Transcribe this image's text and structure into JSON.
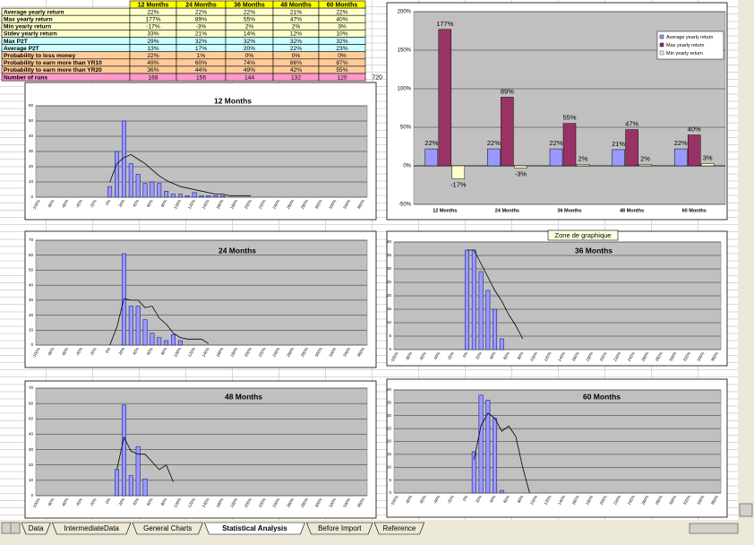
{
  "table": {
    "columns": [
      "12 Months",
      "24 Months",
      "36 Months",
      "48 Months",
      "60 Months"
    ],
    "header_color": "#ffff00",
    "rows": [
      {
        "label": "Average yearly return",
        "color": "#ffffcc",
        "cells": [
          "22%",
          "22%",
          "22%",
          "21%",
          "22%"
        ]
      },
      {
        "label": "Max yearly return",
        "color": "#ffffcc",
        "cells": [
          "177%",
          "89%",
          "55%",
          "47%",
          "40%"
        ]
      },
      {
        "label": "Min yearly return",
        "color": "#ffffcc",
        "cells": [
          "-17%",
          "-3%",
          "2%",
          "2%",
          "3%"
        ]
      },
      {
        "label": "Stdev yearly return",
        "color": "#ffffcc",
        "cells": [
          "33%",
          "21%",
          "14%",
          "12%",
          "10%"
        ]
      },
      {
        "label": "Max P2T",
        "color": "#ccffff",
        "cells": [
          "29%",
          "32%",
          "32%",
          "32%",
          "32%"
        ]
      },
      {
        "label": "Average P2T",
        "color": "#ccffff",
        "cells": [
          "13%",
          "17%",
          "20%",
          "22%",
          "23%"
        ]
      },
      {
        "label": "Probability to loss money",
        "color": "#ffcc99",
        "cells": [
          "22%",
          "1%",
          "0%",
          "0%",
          "0%"
        ]
      },
      {
        "label": "Probability to earn more than YR10",
        "color": "#ffcc99",
        "cells": [
          "49%",
          "60%",
          "74%",
          "86%",
          "87%"
        ]
      },
      {
        "label": "Probability to earn more than YR20",
        "color": "#ffcc99",
        "cells": [
          "36%",
          "44%",
          "49%",
          "42%",
          "55%"
        ]
      },
      {
        "label": "Number of runs",
        "color": "#ff99cc",
        "cells": [
          "168",
          "156",
          "144",
          "132",
          "120"
        ]
      }
    ],
    "total": "720"
  },
  "chart_data": [
    {
      "type": "bar",
      "categories": [
        "12 Months",
        "24 Months",
        "36 Months",
        "48 Months",
        "60 Months"
      ],
      "series": [
        {
          "name": "Average yearly return",
          "color": "#9999ff",
          "values": [
            22,
            22,
            22,
            21,
            22
          ],
          "value_labels": [
            "22%",
            "22%",
            "22%",
            "21%",
            "22%"
          ]
        },
        {
          "name": "Max yearly return",
          "color": "#993366",
          "values": [
            177,
            89,
            55,
            47,
            40
          ],
          "value_labels": [
            "177%",
            "89%",
            "55%",
            "47%",
            "40%"
          ]
        },
        {
          "name": "Min yearly return",
          "color": "#ffffcc",
          "values": [
            -17,
            -3,
            2,
            2,
            3
          ],
          "value_labels": [
            "-17%",
            "-3%",
            "2%",
            "2%",
            "3%"
          ]
        }
      ],
      "ylim": [
        -50,
        200
      ],
      "yticks": [
        {
          "value": -50,
          "label": "-50%"
        },
        {
          "value": 0,
          "label": "0%"
        },
        {
          "value": 50,
          "label": "50%"
        },
        {
          "value": 100,
          "label": "100%"
        },
        {
          "value": 150,
          "label": "150%"
        },
        {
          "value": 200,
          "label": "200%"
        }
      ],
      "grid": true,
      "legend": "right"
    },
    {
      "type": "combo",
      "title": "12 Months",
      "categories": [
        "-100%",
        null,
        "-80%",
        null,
        "-60%",
        null,
        "-40%",
        null,
        "-20%",
        null,
        "0%",
        null,
        "20%",
        null,
        "40%",
        null,
        "60%",
        null,
        "80%",
        null,
        "100%",
        null,
        "120%",
        null,
        "140%",
        null,
        "160%",
        null,
        "180%",
        null,
        "200%",
        null,
        "220%",
        null,
        "240%",
        null,
        "260%",
        null,
        "280%",
        null,
        "300%",
        null,
        "320%",
        null,
        "340%",
        null,
        "360%"
      ],
      "series": [
        {
          "type": "bar",
          "color": "#9999ff",
          "values": [
            0,
            0,
            0,
            0,
            0,
            0,
            0,
            0,
            0,
            0,
            7,
            30,
            50,
            22,
            15,
            9,
            10,
            9,
            4,
            2,
            2,
            1,
            3,
            1,
            1,
            1,
            1,
            0,
            0,
            0,
            0,
            0,
            0,
            0,
            0,
            0,
            0,
            0,
            0,
            0,
            0,
            0,
            0,
            0,
            0,
            0,
            0
          ]
        },
        {
          "type": "line",
          "color": "#000000",
          "values": [
            null,
            null,
            null,
            null,
            null,
            null,
            null,
            null,
            null,
            null,
            10,
            22,
            26,
            28,
            25,
            22,
            18,
            14,
            11,
            9,
            7,
            6,
            5,
            4,
            3,
            2,
            2,
            1,
            1,
            1,
            1,
            null,
            null,
            null,
            null,
            null,
            null,
            null,
            null,
            null,
            null,
            null,
            null,
            null,
            null,
            null,
            null
          ]
        }
      ],
      "ylim": [
        0,
        60
      ],
      "yticks": [
        0,
        10,
        20,
        30,
        40,
        50,
        60
      ],
      "grid": true
    },
    {
      "type": "combo",
      "title": "24 Months",
      "categories": [
        "-100%",
        null,
        "-80%",
        null,
        "-60%",
        null,
        "-40%",
        null,
        "-20%",
        null,
        "0%",
        null,
        "20%",
        null,
        "40%",
        null,
        "60%",
        null,
        "80%",
        null,
        "100%",
        null,
        "120%",
        null,
        "140%",
        null,
        "160%",
        null,
        "180%",
        null,
        "200%",
        null,
        "220%",
        null,
        "240%",
        null,
        "260%",
        null,
        "280%",
        null,
        "300%",
        null,
        "320%",
        null,
        "340%",
        null,
        "360%"
      ],
      "series": [
        {
          "type": "bar",
          "color": "#9999ff",
          "values": [
            0,
            0,
            0,
            0,
            0,
            0,
            0,
            0,
            0,
            0,
            0,
            0,
            61,
            26,
            26,
            17,
            8,
            5,
            3,
            7,
            3,
            0,
            0,
            0,
            0,
            0,
            0,
            0,
            0,
            0,
            0,
            0,
            0,
            0,
            0,
            0,
            0,
            0,
            0,
            0,
            0,
            0,
            0,
            0,
            0,
            0,
            0
          ]
        },
        {
          "type": "line",
          "color": "#000000",
          "values": [
            null,
            null,
            null,
            null,
            null,
            null,
            null,
            null,
            null,
            null,
            0,
            12,
            31,
            30,
            30,
            25,
            26,
            18,
            14,
            8,
            5,
            4,
            4,
            4,
            1,
            null,
            null,
            null,
            null,
            null,
            null,
            null,
            null,
            null,
            null,
            null,
            null,
            null,
            null,
            null,
            null,
            null,
            null,
            null,
            null,
            null,
            null
          ]
        }
      ],
      "ylim": [
        0,
        70
      ],
      "yticks": [
        0,
        10,
        20,
        30,
        40,
        50,
        60,
        70
      ],
      "grid": true
    },
    {
      "type": "combo",
      "title": "36 Months",
      "categories": [
        "-100%",
        null,
        "-80%",
        null,
        "-60%",
        null,
        "-40%",
        null,
        "-20%",
        null,
        "0%",
        null,
        "20%",
        null,
        "40%",
        null,
        "60%",
        null,
        "80%",
        null,
        "100%",
        null,
        "120%",
        null,
        "140%",
        null,
        "160%",
        null,
        "180%",
        null,
        "200%",
        null,
        "220%",
        null,
        "240%",
        null,
        "260%",
        null,
        "280%",
        null,
        "300%",
        null,
        "320%",
        null,
        "340%",
        null,
        "360%"
      ],
      "series": [
        {
          "type": "bar",
          "color": "#9999ff",
          "values": [
            0,
            0,
            0,
            0,
            0,
            0,
            0,
            0,
            0,
            0,
            37,
            37,
            29,
            22,
            15,
            4,
            0,
            0,
            0,
            0,
            0,
            0,
            0,
            0,
            0,
            0,
            0,
            0,
            0,
            0,
            0,
            0,
            0,
            0,
            0,
            0,
            0,
            0,
            0,
            0,
            0,
            0,
            0,
            0,
            0,
            0,
            0
          ]
        },
        {
          "type": "line",
          "color": "#000000",
          "values": [
            null,
            null,
            null,
            null,
            null,
            null,
            null,
            null,
            null,
            null,
            37,
            37,
            32,
            27,
            22,
            18,
            13,
            9,
            4,
            null,
            null,
            null,
            null,
            null,
            null,
            null,
            null,
            null,
            null,
            null,
            null,
            null,
            null,
            null,
            null,
            null,
            null,
            null,
            null,
            null,
            null,
            null,
            null,
            null,
            null,
            null,
            null
          ]
        }
      ],
      "ylim": [
        0,
        40
      ],
      "yticks": [
        0,
        5,
        10,
        15,
        20,
        25,
        30,
        35,
        40
      ],
      "grid": true
    },
    {
      "type": "combo",
      "title": "48 Months",
      "categories": [
        "-100%",
        null,
        "-80%",
        null,
        "-60%",
        null,
        "-40%",
        null,
        "-20%",
        null,
        "0%",
        null,
        "20%",
        null,
        "40%",
        null,
        "60%",
        null,
        "80%",
        null,
        "100%",
        null,
        "120%",
        null,
        "140%",
        null,
        "160%",
        null,
        "180%",
        null,
        "200%",
        null,
        "220%",
        null,
        "240%",
        null,
        "260%",
        null,
        "280%",
        null,
        "300%",
        null,
        "320%",
        null,
        "340%",
        null,
        "360%"
      ],
      "series": [
        {
          "type": "bar",
          "color": "#9999ff",
          "values": [
            0,
            0,
            0,
            0,
            0,
            0,
            0,
            0,
            0,
            0,
            0,
            17,
            59,
            13,
            32,
            11,
            0,
            0,
            0,
            0,
            0,
            0,
            0,
            0,
            0,
            0,
            0,
            0,
            0,
            0,
            0,
            0,
            0,
            0,
            0,
            0,
            0,
            0,
            0,
            0,
            0,
            0,
            0,
            0,
            0,
            0,
            0
          ]
        },
        {
          "type": "line",
          "color": "#000000",
          "values": [
            null,
            null,
            null,
            null,
            null,
            null,
            null,
            null,
            null,
            null,
            null,
            17,
            38,
            29,
            27,
            27,
            22,
            17,
            20,
            9,
            null,
            null,
            null,
            null,
            null,
            null,
            null,
            null,
            null,
            null,
            null,
            null,
            null,
            null,
            null,
            null,
            null,
            null,
            null,
            null,
            null,
            null,
            null,
            null,
            null,
            null,
            null
          ]
        }
      ],
      "ylim": [
        0,
        70
      ],
      "yticks": [
        0,
        10,
        20,
        30,
        40,
        50,
        60,
        70
      ],
      "grid": true
    },
    {
      "type": "combo",
      "title": "60 Months",
      "categories": [
        "-100%",
        null,
        "-80%",
        null,
        "-60%",
        null,
        "-40%",
        null,
        "-20%",
        null,
        "0%",
        null,
        "20%",
        null,
        "40%",
        null,
        "60%",
        null,
        "80%",
        null,
        "100%",
        null,
        "120%",
        null,
        "140%",
        null,
        "160%",
        null,
        "180%",
        null,
        "200%",
        null,
        "220%",
        null,
        "240%",
        null,
        "260%",
        null,
        "280%",
        null,
        "300%",
        null,
        "320%",
        null,
        "340%",
        null,
        "360%"
      ],
      "series": [
        {
          "type": "bar",
          "color": "#9999ff",
          "values": [
            0,
            0,
            0,
            0,
            0,
            0,
            0,
            0,
            0,
            0,
            0,
            16,
            38,
            36,
            29,
            1,
            0,
            0,
            0,
            0,
            0,
            0,
            0,
            0,
            0,
            0,
            0,
            0,
            0,
            0,
            0,
            0,
            0,
            0,
            0,
            0,
            0,
            0,
            0,
            0,
            0,
            0,
            0,
            0,
            0,
            0,
            0
          ]
        },
        {
          "type": "line",
          "color": "#000000",
          "values": [
            null,
            null,
            null,
            null,
            null,
            null,
            null,
            null,
            null,
            null,
            null,
            13,
            26,
            31,
            29,
            24,
            26,
            22,
            10,
            0,
            null,
            null,
            null,
            null,
            null,
            null,
            null,
            null,
            null,
            null,
            null,
            null,
            null,
            null,
            null,
            null,
            null,
            null,
            null,
            null,
            null,
            null,
            null,
            null,
            null,
            null,
            null
          ]
        }
      ],
      "ylim": [
        0,
        40
      ],
      "yticks": [
        0,
        5,
        10,
        15,
        20,
        25,
        30,
        35,
        40
      ],
      "grid": true
    }
  ],
  "tooltip": "Zone de graphique",
  "sheet_tabs": [
    "Data",
    "IntermediateData",
    "General Charts",
    "Statistical Analysis",
    "Before Import",
    "Reference"
  ],
  "active_tab": 3
}
